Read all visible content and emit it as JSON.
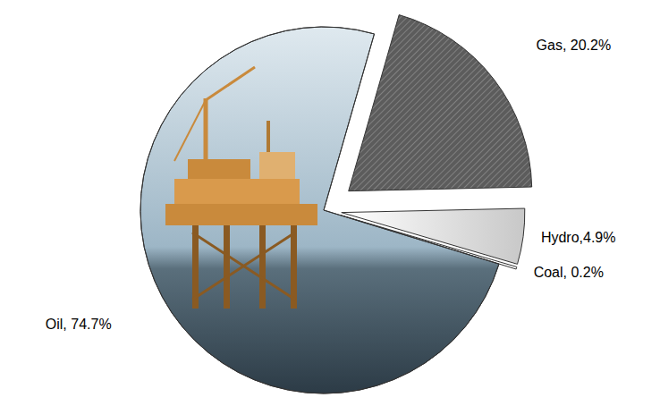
{
  "chart_data": {
    "type": "pie",
    "categories": [
      "Gas",
      "Hydro",
      "Coal",
      "Oil"
    ],
    "values": [
      20.2,
      4.9,
      0.2,
      74.7
    ],
    "value_labels": [
      "Gas, 20.2%",
      "Hydro,4.9%",
      "Coal, 0.2%",
      "Oil, 74.7%"
    ],
    "colors": [
      "#5c5c5c",
      "#c8c8c8",
      "#ffffff",
      "#9db6c6"
    ],
    "data_labels": true
  }
}
